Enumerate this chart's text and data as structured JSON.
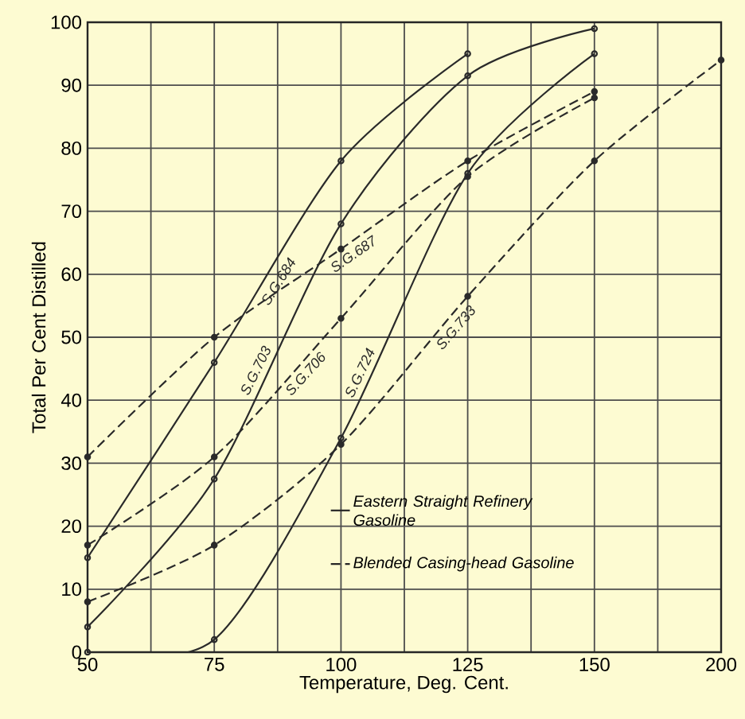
{
  "chart_data": {
    "type": "line",
    "xlabel": "Temperature, Deg. Cent.",
    "ylabel": "Total Per Cent Distilled",
    "categories": [
      "50",
      "75",
      "100",
      "125",
      "150",
      "200"
    ],
    "ylim": [
      0,
      100
    ],
    "yticks": [
      0,
      10,
      20,
      30,
      40,
      50,
      60,
      70,
      80,
      90,
      100
    ],
    "grid": true,
    "marker": "circle",
    "series": [
      {
        "name": "S.G.684",
        "color": "#2a2a2a",
        "line_style": "solid",
        "values": [
          15,
          46,
          78,
          95,
          null,
          null
        ]
      },
      {
        "name": "S.G.703",
        "color": "#2a2a2a",
        "line_style": "solid",
        "values": [
          4,
          27.5,
          68,
          91.5,
          99,
          null
        ]
      },
      {
        "name": "S.G.724",
        "color": "#2a2a2a",
        "line_style": "solid",
        "values": [
          0,
          2,
          34,
          76,
          95,
          null
        ]
      },
      {
        "name": "S.G.687",
        "color": "#2a2a2a",
        "line_style": "dashed",
        "values": [
          31,
          50,
          64,
          78,
          89,
          null
        ]
      },
      {
        "name": "S.G.706",
        "color": "#2a2a2a",
        "line_style": "dashed",
        "values": [
          17,
          31,
          53,
          75.5,
          88,
          null
        ]
      },
      {
        "name": "S.G.733",
        "color": "#2a2a2a",
        "line_style": "dashed",
        "values": [
          8,
          17,
          33,
          56.5,
          78,
          94
        ]
      }
    ],
    "annotations": [
      "Eastern Straight Refinery Gasoline",
      "Blended Casing-head Gasoline"
    ]
  }
}
